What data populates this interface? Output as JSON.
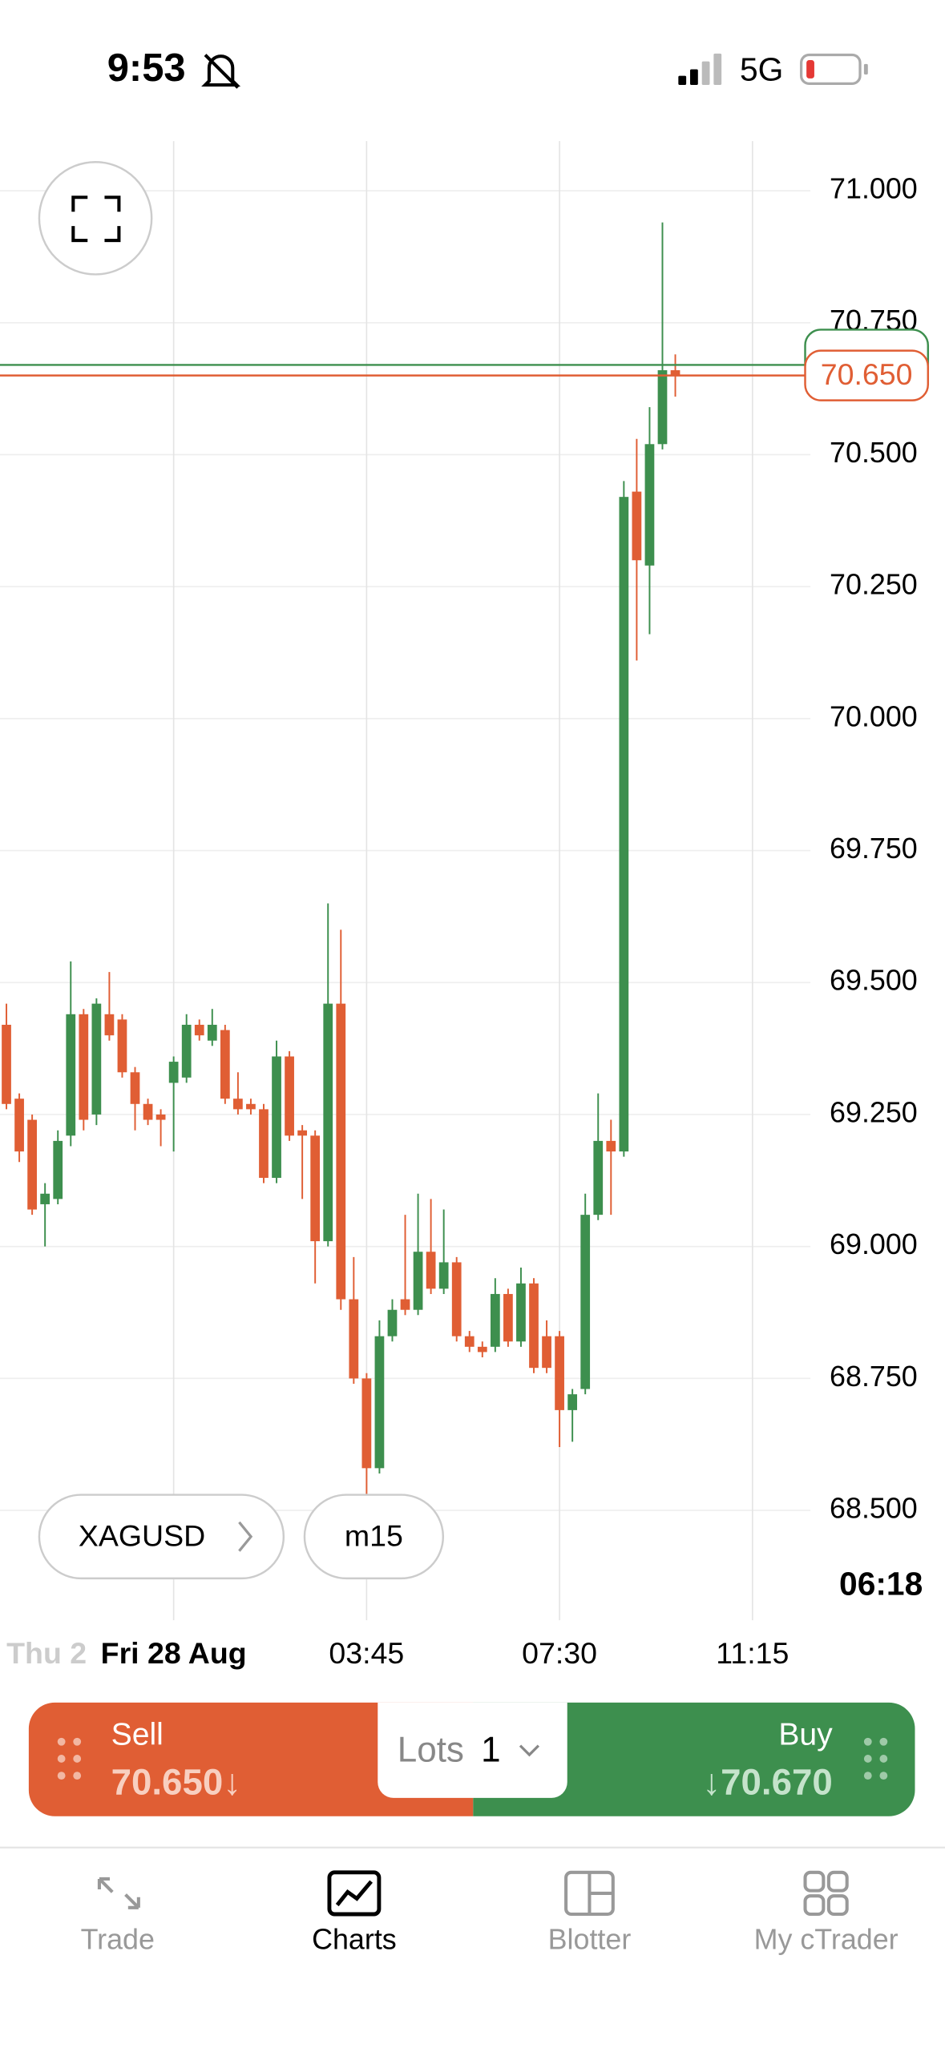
{
  "status_bar": {
    "time": "9:53",
    "network": "5G"
  },
  "chart_data": {
    "type": "candlestick",
    "up_color": "#3d8f4e",
    "down_color": "#e05e34",
    "categories": [
      null,
      null,
      null,
      null,
      null,
      null,
      null,
      null,
      null,
      null,
      null,
      null,
      null,
      "Fri 28 Aug",
      null,
      null,
      null,
      null,
      null,
      null,
      null,
      null,
      null,
      null,
      null,
      null,
      null,
      null,
      "03:45",
      null,
      null,
      null,
      null,
      null,
      null,
      null,
      null,
      null,
      null,
      null,
      null,
      null,
      null,
      "07:30",
      null,
      null,
      null,
      null,
      null,
      null,
      null,
      null,
      null,
      null,
      null,
      null,
      null,
      null,
      "11:15",
      null,
      null,
      null,
      null
    ],
    "open": [
      69.42,
      69.28,
      69.24,
      69.08,
      69.09,
      69.21,
      69.44,
      69.25,
      69.44,
      69.43,
      69.33,
      69.27,
      69.25,
      69.31,
      69.32,
      69.42,
      69.39,
      69.41,
      69.28,
      69.27,
      69.26,
      69.13,
      69.36,
      69.22,
      69.21,
      69.01,
      69.46,
      68.9,
      68.75,
      68.58,
      68.83,
      68.9,
      68.88,
      68.99,
      68.92,
      68.97,
      68.83,
      68.81,
      68.81,
      68.91,
      68.82,
      68.93,
      68.83,
      68.83,
      68.69,
      68.73,
      69.06,
      69.2,
      69.18,
      70.43,
      70.29,
      70.52,
      70.66,
      null,
      null,
      null,
      null,
      null,
      null,
      null,
      null,
      null,
      null
    ],
    "high": [
      69.46,
      69.29,
      69.25,
      69.12,
      69.22,
      69.54,
      69.45,
      69.47,
      69.52,
      69.44,
      69.34,
      69.28,
      69.26,
      69.36,
      69.44,
      69.43,
      69.45,
      69.42,
      69.33,
      69.28,
      69.27,
      69.39,
      69.37,
      69.23,
      69.22,
      69.65,
      69.6,
      68.98,
      68.76,
      68.86,
      68.9,
      69.06,
      69.1,
      69.09,
      69.07,
      68.98,
      68.84,
      68.82,
      68.94,
      68.92,
      68.96,
      68.94,
      68.86,
      68.84,
      68.73,
      69.1,
      69.29,
      69.24,
      70.45,
      70.53,
      70.59,
      70.94,
      70.69,
      null,
      null,
      null,
      null,
      null,
      null,
      null,
      null,
      null,
      null
    ],
    "low": [
      69.26,
      69.16,
      69.06,
      69.0,
      69.08,
      69.19,
      69.22,
      69.23,
      69.39,
      69.32,
      69.22,
      69.23,
      69.19,
      69.18,
      69.31,
      69.39,
      69.38,
      69.27,
      69.25,
      69.25,
      69.12,
      69.12,
      69.2,
      69.09,
      68.93,
      69.0,
      68.88,
      68.74,
      68.53,
      68.57,
      68.82,
      68.87,
      68.87,
      68.91,
      68.91,
      68.82,
      68.8,
      68.79,
      68.8,
      68.81,
      68.81,
      68.76,
      68.76,
      68.62,
      68.63,
      68.72,
      69.05,
      69.06,
      69.17,
      70.11,
      70.16,
      70.51,
      70.61,
      null,
      null,
      null,
      null,
      null,
      null,
      null,
      null,
      null,
      null
    ],
    "close": [
      69.27,
      69.18,
      69.07,
      69.1,
      69.2,
      69.44,
      69.24,
      69.46,
      69.4,
      69.33,
      69.27,
      69.24,
      69.24,
      69.35,
      69.42,
      69.4,
      69.42,
      69.28,
      69.26,
      69.26,
      69.13,
      69.36,
      69.21,
      69.21,
      69.01,
      69.46,
      68.9,
      68.75,
      68.58,
      68.83,
      68.88,
      68.88,
      68.99,
      68.92,
      68.97,
      68.83,
      68.81,
      68.8,
      68.91,
      68.82,
      68.93,
      68.77,
      68.77,
      68.69,
      68.72,
      69.06,
      69.2,
      69.18,
      70.42,
      70.3,
      70.52,
      70.66,
      70.65,
      null,
      null,
      null,
      null,
      null,
      null,
      null,
      null,
      null,
      null
    ],
    "ylim": [
      68.292,
      71.094
    ],
    "yticks": [
      {
        "value": 68.5,
        "label": "68.500"
      },
      {
        "value": 68.75,
        "label": "68.750"
      },
      {
        "value": 69,
        "label": "69.000"
      },
      {
        "value": 69.25,
        "label": "69.250"
      },
      {
        "value": 69.5,
        "label": "69.500"
      },
      {
        "value": 69.75,
        "label": "69.750"
      },
      {
        "value": 70,
        "label": "70.000"
      },
      {
        "value": 70.25,
        "label": "70.250"
      },
      {
        "value": 70.5,
        "label": "70.500"
      },
      {
        "value": 70.75,
        "label": "70.750"
      },
      {
        "value": 71,
        "label": "71.000"
      }
    ],
    "price_lines": [
      {
        "value": 70.67,
        "color": "#3d8f4e"
      },
      {
        "value": 70.65,
        "label": "70.650",
        "color": "#e05e34"
      }
    ],
    "grid": true,
    "x_sticky_label": "Thu 2",
    "countdown": "06:18",
    "symbol": "XAGUSD",
    "timeframe": "m15"
  },
  "trade_panel": {
    "sell_label": "Sell",
    "sell_price": "70.650↓",
    "lots_label": "Lots",
    "lots_value": "1",
    "buy_label": "Buy",
    "buy_price": "↓70.670"
  },
  "tab_bar": {
    "tabs": [
      "Trade",
      "Charts",
      "Blotter",
      "My cTrader"
    ]
  }
}
